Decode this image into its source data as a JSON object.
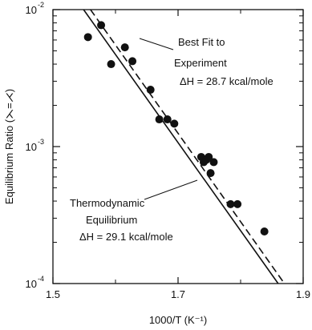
{
  "chart_data": {
    "type": "scatter",
    "title": "",
    "xlabel": "1000/T (K⁻¹)",
    "ylabel": "Equilibrium Ratio (⋋=⋌)",
    "x_scale": "linear",
    "y_scale": "log",
    "xlim": [
      1.5,
      1.9
    ],
    "ylim": [
      0.0001,
      0.01
    ],
    "x_ticks": [
      {
        "value": 1.5,
        "label": "1.5"
      },
      {
        "value": 1.7,
        "label": "1.7"
      },
      {
        "value": 1.9,
        "label": "1.9"
      }
    ],
    "x_minor_ticks": [
      1.6,
      1.8
    ],
    "y_ticks": [
      {
        "value": 0.0001,
        "mantissa": "10",
        "exp": "-4"
      },
      {
        "value": 0.001,
        "mantissa": "10",
        "exp": "-3"
      },
      {
        "value": 0.01,
        "mantissa": "10",
        "exp": "-2"
      }
    ],
    "grid": false,
    "legend": "none",
    "series": [
      {
        "kind": "points",
        "points": [
          {
            "x": 1.556,
            "y": 0.0063
          },
          {
            "x": 1.577,
            "y": 0.0077
          },
          {
            "x": 1.593,
            "y": 0.004
          },
          {
            "x": 1.615,
            "y": 0.0053
          },
          {
            "x": 1.627,
            "y": 0.0042
          },
          {
            "x": 1.656,
            "y": 0.0026
          },
          {
            "x": 1.67,
            "y": 0.00158
          },
          {
            "x": 1.683,
            "y": 0.00158
          },
          {
            "x": 1.694,
            "y": 0.00147
          },
          {
            "x": 1.737,
            "y": 0.00084
          },
          {
            "x": 1.741,
            "y": 0.00077
          },
          {
            "x": 1.745,
            "y": 0.0008
          },
          {
            "x": 1.749,
            "y": 0.00084
          },
          {
            "x": 1.752,
            "y": 0.00064
          },
          {
            "x": 1.757,
            "y": 0.00077
          },
          {
            "x": 1.784,
            "y": 0.00038
          },
          {
            "x": 1.795,
            "y": 0.00038
          },
          {
            "x": 1.838,
            "y": 0.00024
          }
        ]
      },
      {
        "kind": "line",
        "style": "dashed",
        "points": [
          {
            "x": 1.56,
            "y": 0.01
          },
          {
            "x": 1.87,
            "y": 0.0001
          }
        ]
      },
      {
        "kind": "line",
        "style": "solid",
        "points": [
          {
            "x": 1.549,
            "y": 0.01
          },
          {
            "x": 1.86,
            "y": 0.0001
          }
        ]
      }
    ],
    "annotations": [
      {
        "lines": [
          "Best Fit to",
          "Experiment",
          "ΔH = 28.7 kcal/mole"
        ]
      },
      {
        "lines": [
          "Thermodynamic",
          "Equilibrium",
          "ΔH = 29.1 kcal/mole"
        ]
      }
    ]
  }
}
